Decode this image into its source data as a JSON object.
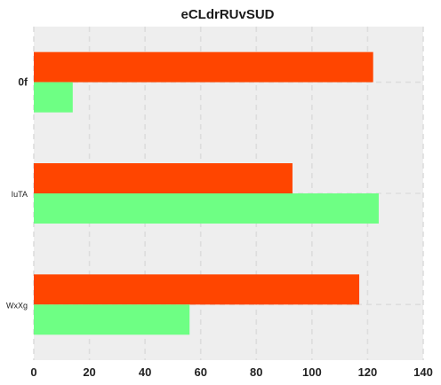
{
  "chart_data": {
    "type": "bar",
    "orientation": "horizontal",
    "title": "eCLdrRUvSUD",
    "xlabel": "",
    "ylabel": "",
    "categories": [
      "0f",
      "IuTA",
      "WxXg"
    ],
    "xlim": [
      0,
      140
    ],
    "x_ticks": [
      0,
      20,
      40,
      60,
      80,
      100,
      120,
      140
    ],
    "grid": true,
    "legend": "none",
    "series": [
      {
        "color": "#FF4500",
        "values": [
          122,
          93,
          117
        ]
      },
      {
        "color": "#6EFF84",
        "values": [
          14,
          124,
          56
        ]
      }
    ]
  },
  "colors": {
    "plot_background": "#EEEEEE",
    "grid": "#DDDDDD"
  }
}
